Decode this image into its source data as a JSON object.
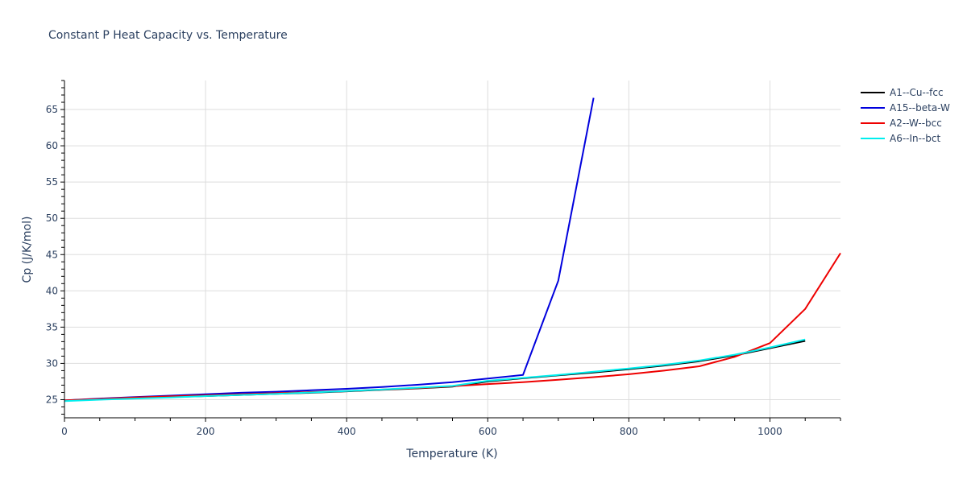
{
  "chart_data": {
    "type": "line",
    "title": "Constant P Heat Capacity vs. Temperature",
    "xlabel": "Temperature (K)",
    "ylabel": "Cp (J/K/mol)",
    "xlim": [
      0,
      1100
    ],
    "ylim": [
      22.5,
      69
    ],
    "x_ticks": [
      0,
      200,
      400,
      600,
      800,
      1000
    ],
    "y_ticks": [
      25,
      30,
      35,
      40,
      45,
      50,
      55,
      60,
      65
    ],
    "grid": true,
    "legend_position": "right",
    "series": [
      {
        "name": "A1--Cu--fcc",
        "color": "#000000",
        "x": [
          0,
          50,
          100,
          150,
          200,
          250,
          300,
          350,
          400,
          450,
          500,
          550,
          600,
          650,
          700,
          750,
          800,
          850,
          900,
          950,
          1000,
          1050
        ],
        "y": [
          24.85,
          25.05,
          25.2,
          25.35,
          25.5,
          25.65,
          25.8,
          25.95,
          26.15,
          26.35,
          26.55,
          26.8,
          27.5,
          27.95,
          28.35,
          28.75,
          29.2,
          29.7,
          30.3,
          31.1,
          32.1,
          33.1
        ]
      },
      {
        "name": "A15--beta-W",
        "color": "#0000dd",
        "x": [
          0,
          50,
          100,
          150,
          200,
          250,
          300,
          350,
          400,
          450,
          500,
          550,
          600,
          650,
          700,
          750
        ],
        "y": [
          24.9,
          25.15,
          25.35,
          25.55,
          25.75,
          25.95,
          26.1,
          26.3,
          26.5,
          26.75,
          27.05,
          27.4,
          27.9,
          28.4,
          41.4,
          66.6
        ]
      },
      {
        "name": "A2--W--bcc",
        "color": "#ee0000",
        "x": [
          0,
          50,
          100,
          150,
          200,
          250,
          300,
          350,
          400,
          450,
          500,
          550,
          600,
          650,
          700,
          750,
          800,
          850,
          900,
          950,
          1000,
          1050,
          1100
        ],
        "y": [
          24.9,
          25.1,
          25.3,
          25.45,
          25.6,
          25.75,
          25.9,
          26.05,
          26.2,
          26.4,
          26.6,
          26.85,
          27.15,
          27.4,
          27.75,
          28.1,
          28.5,
          29.0,
          29.6,
          30.9,
          32.8,
          37.5,
          45.2
        ]
      },
      {
        "name": "A6--In--bct",
        "color": "#00eeee",
        "x": [
          0,
          50,
          100,
          150,
          200,
          250,
          300,
          350,
          400,
          450,
          500,
          550,
          600,
          650,
          700,
          750,
          800,
          850,
          900,
          950,
          1000,
          1050
        ],
        "y": [
          24.8,
          25.0,
          25.15,
          25.3,
          25.5,
          25.65,
          25.8,
          26.0,
          26.2,
          26.4,
          26.65,
          26.9,
          27.6,
          28.0,
          28.4,
          28.85,
          29.3,
          29.8,
          30.4,
          31.2,
          32.2,
          33.3
        ]
      }
    ]
  }
}
